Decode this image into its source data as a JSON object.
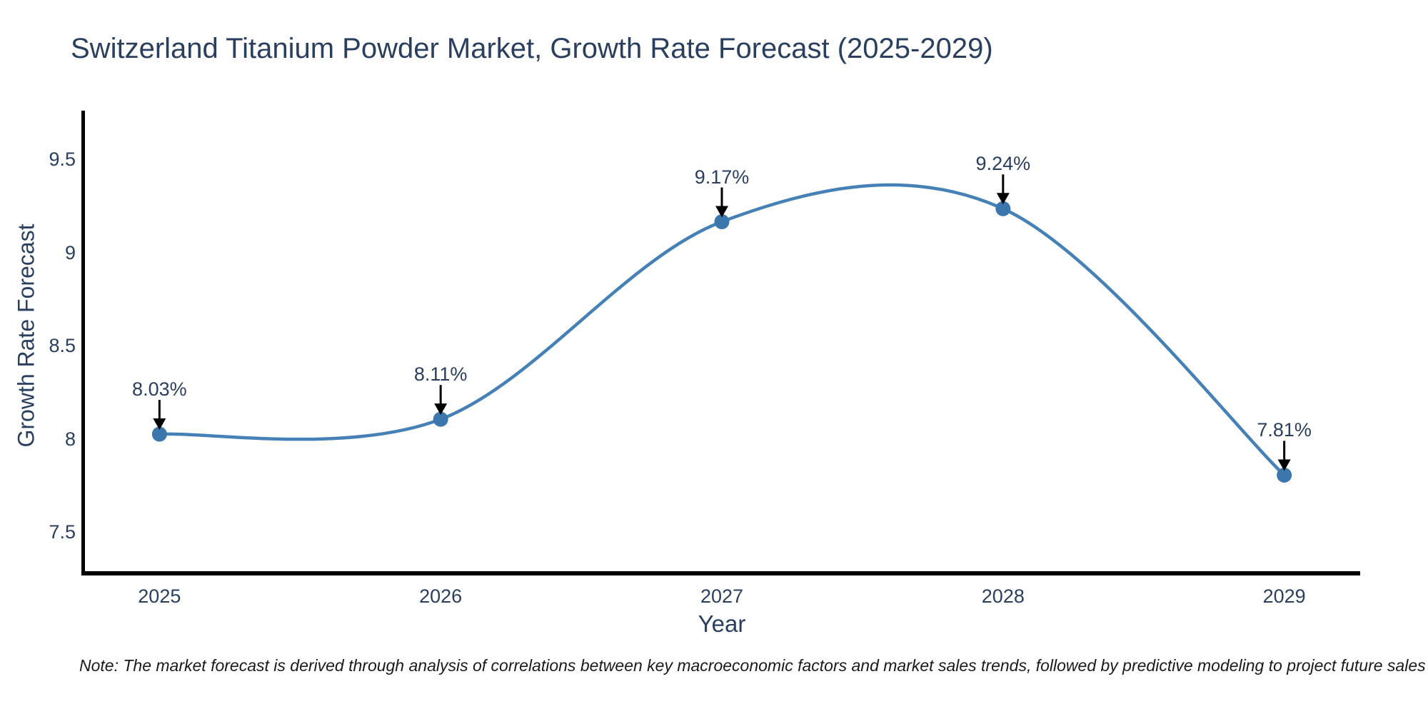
{
  "page": {
    "background": "#ffffff"
  },
  "note": {
    "text": "Note: The market forecast is derived through analysis of correlations between key macroeconomic factors and market sales trends, followed by predictive modeling to project future sales"
  },
  "chart_data": {
    "type": "line",
    "title": "Switzerland Titanium Powder Market, Growth Rate Forecast (2025-2029)",
    "xlabel": "Year",
    "ylabel": "Growth Rate Forecast",
    "x": [
      2025,
      2026,
      2027,
      2028,
      2029
    ],
    "x_tick_labels": [
      "2025",
      "2026",
      "2027",
      "2028",
      "2029"
    ],
    "y": [
      8.03,
      8.11,
      9.17,
      9.24,
      7.81
    ],
    "point_labels": [
      "8.03%",
      "8.11%",
      "9.17%",
      "9.24%",
      "7.81%"
    ],
    "y_ticks": [
      7.5,
      8,
      8.5,
      9,
      9.5
    ],
    "y_tick_labels": [
      "7.5",
      "8",
      "8.5",
      "9",
      "9.5"
    ],
    "xlim": [
      2024.73,
      2029.27
    ],
    "ylim": [
      7.283,
      9.766
    ],
    "line_shape": "spline",
    "grid": false,
    "legend": false,
    "annotations_have_arrows": true,
    "colors": {
      "line": "#4581b6",
      "marker": "#3b76ad",
      "axis": "#000000",
      "text": "#2a3f5f",
      "arrow": "#000000"
    }
  }
}
